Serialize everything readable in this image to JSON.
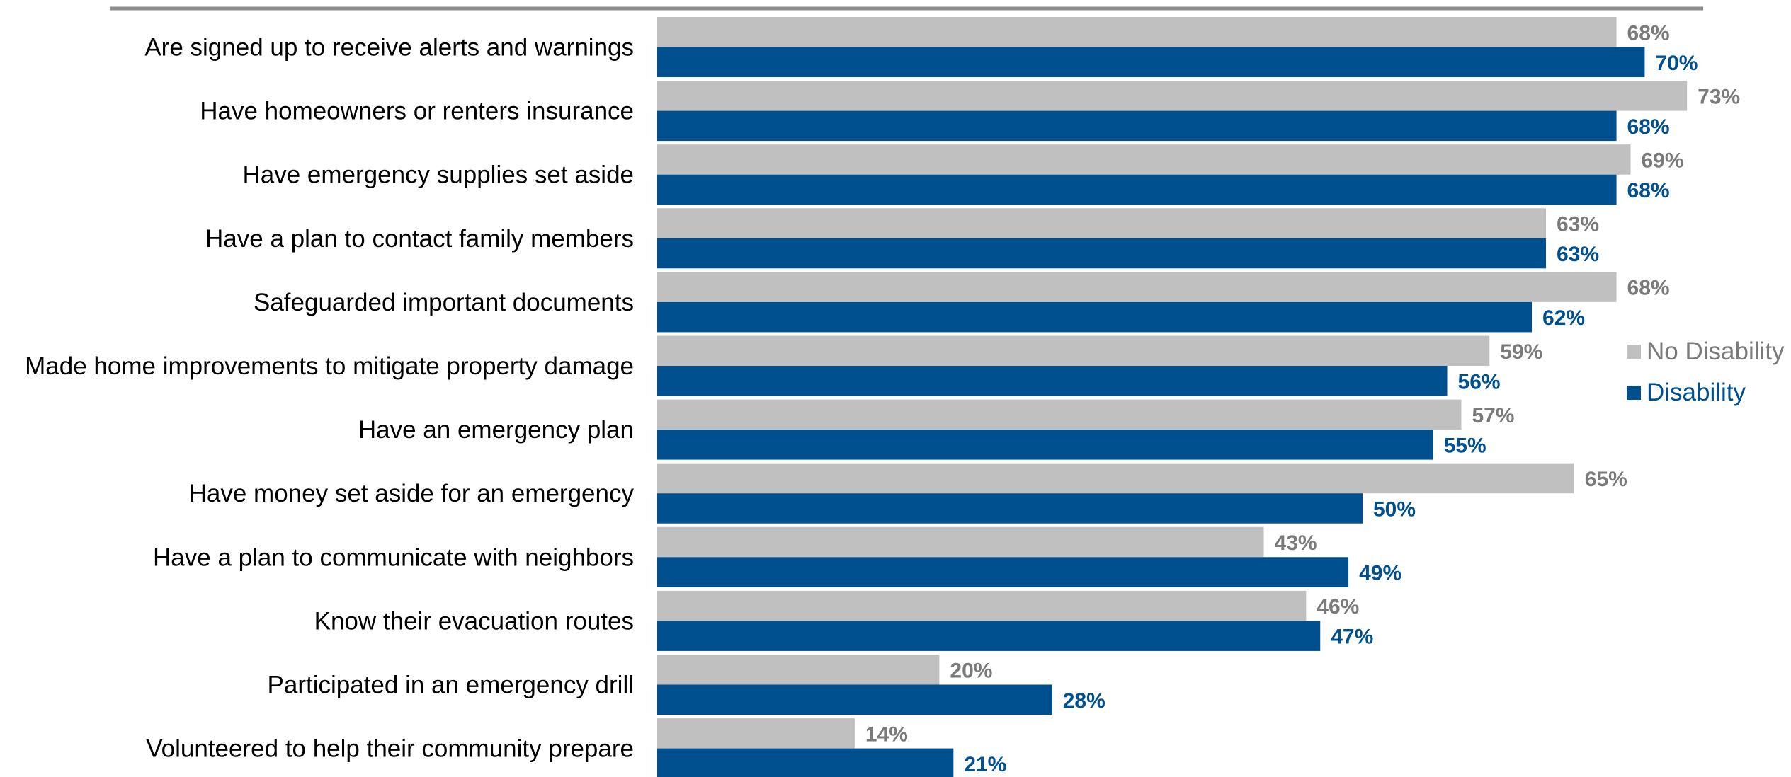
{
  "chart_data": {
    "type": "bar",
    "orientation": "horizontal",
    "unit": "%",
    "categories": [
      "Are signed up to receive alerts and warnings",
      "Have homeowners or renters insurance",
      "Have emergency supplies set aside",
      "Have a plan to contact family members",
      "Safeguarded important documents",
      "Made home improvements to mitigate property damage",
      "Have an emergency plan",
      "Have money set aside for an emergency",
      "Have a plan to communicate with neighbors",
      "Know their evacuation routes",
      "Participated in an emergency drill",
      "Volunteered to help their community prepare"
    ],
    "series": [
      {
        "name": "No Disability",
        "color": "#c0c0c0",
        "label_color": "#7a7a7a",
        "values": [
          68,
          73,
          69,
          63,
          68,
          59,
          57,
          65,
          43,
          46,
          20,
          14
        ]
      },
      {
        "name": "Disability",
        "color": "#00508f",
        "label_color": "#00508f",
        "values": [
          70,
          68,
          68,
          63,
          62,
          56,
          55,
          50,
          49,
          47,
          28,
          21
        ]
      }
    ],
    "xlim": [
      0,
      100
    ],
    "grid": false,
    "legend": "right"
  }
}
